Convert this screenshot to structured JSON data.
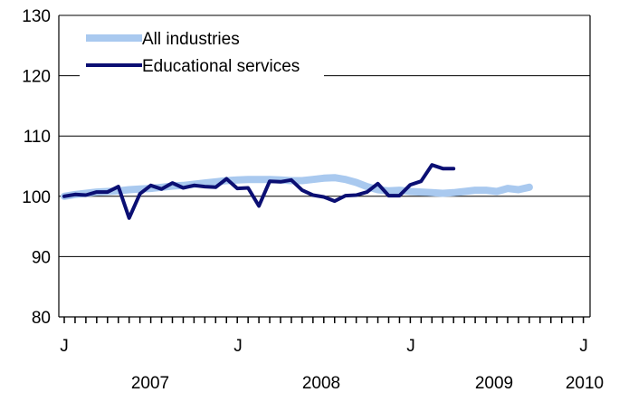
{
  "chart_data": {
    "type": "line",
    "title": "",
    "xlabel": "",
    "ylabel": "",
    "ylim": [
      80,
      130
    ],
    "y_ticks": [
      80,
      90,
      100,
      110,
      120,
      130
    ],
    "grid": "horizontal",
    "legend_position": "top-left",
    "x_month_labels": [
      "J",
      "J",
      "J",
      "J"
    ],
    "x_year_labels": [
      "2007",
      "2008",
      "2009",
      "2010"
    ],
    "x_start": "2007-01",
    "x_end": "2010-01",
    "series": [
      {
        "name": "All industries",
        "color": "#a9c9ef",
        "values": [
          100.0,
          100.3,
          100.5,
          100.7,
          100.8,
          100.9,
          101.1,
          101.2,
          101.3,
          101.5,
          101.7,
          101.8,
          102.0,
          102.2,
          102.4,
          102.6,
          102.7,
          102.8,
          102.8,
          102.8,
          102.7,
          102.6,
          102.6,
          102.8,
          103.0,
          103.1,
          102.8,
          102.3,
          101.6,
          101.1,
          100.9,
          101.0,
          100.8,
          100.7,
          100.6,
          100.5,
          100.6,
          100.8,
          101.0,
          101.0,
          100.8,
          101.3,
          101.1,
          101.5
        ]
      },
      {
        "name": "Educational services",
        "color": "#0b0f73",
        "values": [
          100.0,
          100.3,
          100.2,
          100.7,
          100.7,
          101.6,
          96.4,
          100.4,
          101.8,
          101.2,
          102.2,
          101.4,
          101.8,
          101.6,
          101.5,
          102.9,
          101.3,
          101.4,
          98.4,
          102.5,
          102.4,
          102.7,
          101.0,
          100.2,
          99.9,
          99.2,
          100.1,
          100.2,
          100.7,
          102.1,
          100.1,
          100.1,
          101.9,
          102.5,
          105.2,
          104.6,
          104.6
        ]
      }
    ]
  }
}
